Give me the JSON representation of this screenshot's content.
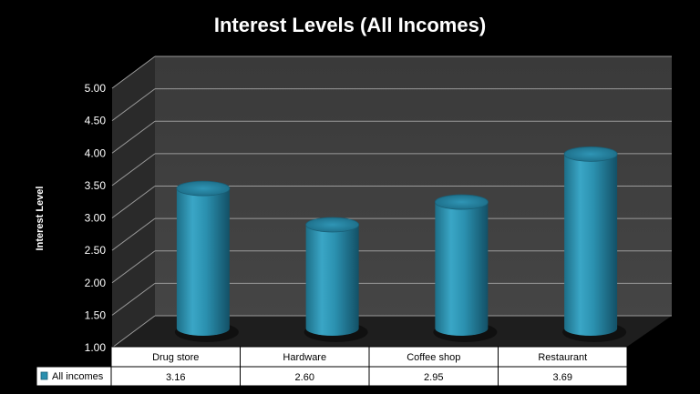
{
  "chart_data": {
    "type": "bar",
    "title": "Interest Levels (All Incomes)",
    "xlabel": "",
    "ylabel": "Interest Level",
    "ylim": [
      1.0,
      5.0
    ],
    "yticks": [
      "1.00",
      "1.50",
      "2.00",
      "2.50",
      "3.00",
      "3.50",
      "4.00",
      "4.50",
      "5.00"
    ],
    "categories": [
      "Drug store",
      "Hardware",
      "Coffee shop",
      "Restaurant"
    ],
    "series": [
      {
        "name": "All incomes",
        "values": [
          3.16,
          2.6,
          2.95,
          3.69
        ],
        "value_labels": [
          "3.16",
          "2.60",
          "2.95",
          "3.69"
        ]
      }
    ],
    "grid": true,
    "legend": "data-table",
    "colors": {
      "bar": "#2a8fae",
      "background": "#000000",
      "wall": "#3d3d3d",
      "side_wall": "#2a2a2a",
      "gridline": "#9a9a9a",
      "table": "#ffffff"
    }
  }
}
